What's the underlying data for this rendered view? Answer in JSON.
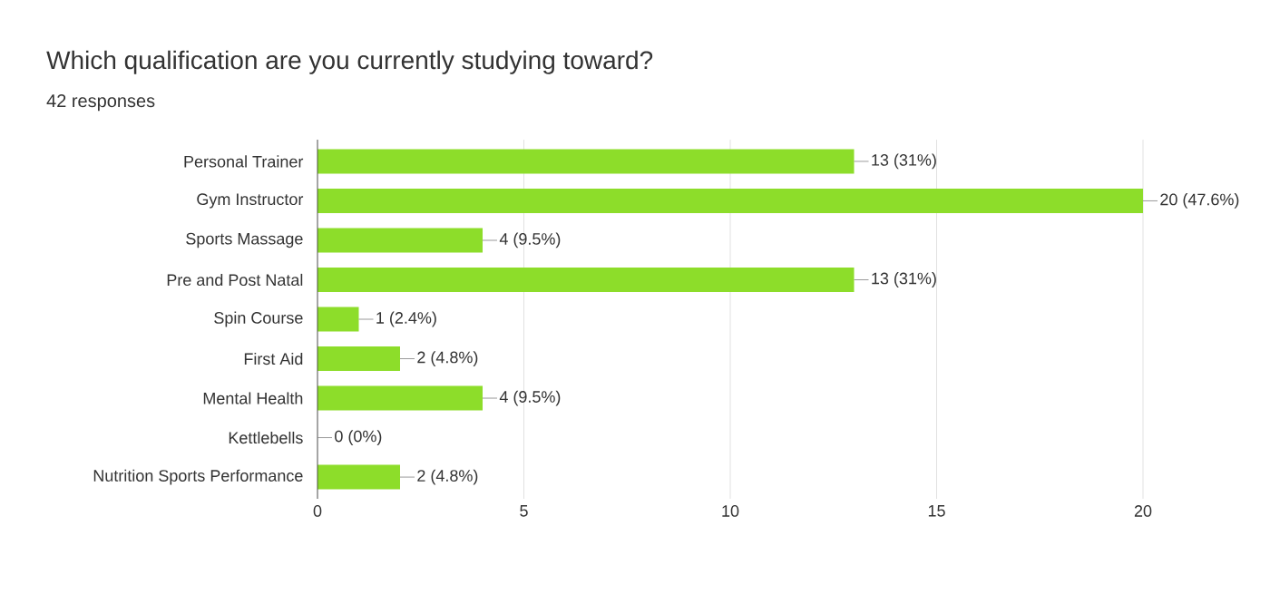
{
  "chart_data": {
    "type": "bar",
    "orientation": "horizontal",
    "title": "Which qualification are you currently studying toward?",
    "subtitle": "42 responses",
    "categories": [
      "Personal Trainer",
      "Gym Instructor",
      "Sports Massage",
      "Pre and Post Natal",
      "Spin Course",
      "First Aid",
      "Mental Health",
      "Kettlebells",
      "Nutrition Sports Performance"
    ],
    "values": [
      13,
      20,
      4,
      13,
      1,
      2,
      4,
      0,
      2
    ],
    "value_labels": [
      "13 (31%)",
      "20 (47.6%)",
      "4 (9.5%)",
      "13 (31%)",
      "1 (2.4%)",
      "2 (4.8%)",
      "4 (9.5%)",
      "0 (0%)",
      "2 (4.8%)"
    ],
    "color": "#8ddd2a",
    "xlim": [
      0,
      20
    ],
    "xticks": [
      0,
      5,
      10,
      15,
      20
    ],
    "grid": "x"
  }
}
